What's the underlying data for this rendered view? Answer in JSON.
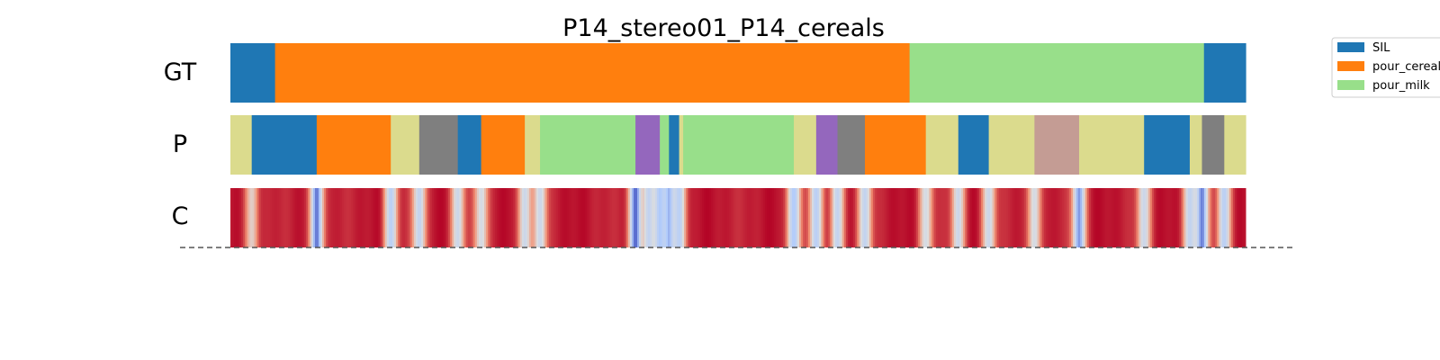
{
  "chart_data": {
    "type": "segmentation",
    "title": "P14_stereo01_P14_cereals",
    "rows": [
      {
        "label": "GT",
        "kind": "segments",
        "segments": [
          {
            "start": 0.0,
            "end": 0.044,
            "class": "SIL"
          },
          {
            "start": 0.044,
            "end": 0.669,
            "class": "pour_cereals"
          },
          {
            "start": 0.669,
            "end": 0.959,
            "class": "pour_milk"
          },
          {
            "start": 0.959,
            "end": 1.0,
            "class": "SIL"
          }
        ]
      },
      {
        "label": "P",
        "kind": "segments",
        "segments": [
          {
            "start": 0.0,
            "end": 0.021,
            "class": "khaki"
          },
          {
            "start": 0.021,
            "end": 0.085,
            "class": "SIL"
          },
          {
            "start": 0.085,
            "end": 0.158,
            "class": "pour_cereals"
          },
          {
            "start": 0.158,
            "end": 0.186,
            "class": "khaki"
          },
          {
            "start": 0.186,
            "end": 0.224,
            "class": "gray"
          },
          {
            "start": 0.224,
            "end": 0.247,
            "class": "SIL"
          },
          {
            "start": 0.247,
            "end": 0.29,
            "class": "pour_cereals"
          },
          {
            "start": 0.29,
            "end": 0.305,
            "class": "khaki"
          },
          {
            "start": 0.305,
            "end": 0.399,
            "class": "pour_milk"
          },
          {
            "start": 0.399,
            "end": 0.423,
            "class": "purple"
          },
          {
            "start": 0.423,
            "end": 0.432,
            "class": "pour_milk"
          },
          {
            "start": 0.432,
            "end": 0.442,
            "class": "SIL"
          },
          {
            "start": 0.442,
            "end": 0.446,
            "class": "khaki"
          },
          {
            "start": 0.446,
            "end": 0.555,
            "class": "pour_milk"
          },
          {
            "start": 0.555,
            "end": 0.577,
            "class": "khaki"
          },
          {
            "start": 0.577,
            "end": 0.598,
            "class": "purple"
          },
          {
            "start": 0.598,
            "end": 0.625,
            "class": "gray"
          },
          {
            "start": 0.625,
            "end": 0.685,
            "class": "pour_cereals"
          },
          {
            "start": 0.685,
            "end": 0.717,
            "class": "khaki"
          },
          {
            "start": 0.717,
            "end": 0.747,
            "class": "SIL"
          },
          {
            "start": 0.747,
            "end": 0.792,
            "class": "khaki"
          },
          {
            "start": 0.792,
            "end": 0.836,
            "class": "rosy"
          },
          {
            "start": 0.836,
            "end": 0.9,
            "class": "khaki"
          },
          {
            "start": 0.9,
            "end": 0.945,
            "class": "SIL"
          },
          {
            "start": 0.945,
            "end": 0.957,
            "class": "khaki"
          },
          {
            "start": 0.957,
            "end": 0.979,
            "class": "gray"
          },
          {
            "start": 0.979,
            "end": 1.0,
            "class": "khaki"
          }
        ]
      },
      {
        "label": "C",
        "kind": "confidence",
        "colormap": [
          "#3b4cc0",
          "#b2ccfb",
          "#dddddd",
          "#f29072",
          "#b40426"
        ],
        "dips": [
          {
            "pos": 0.021,
            "min": 0.55
          },
          {
            "pos": 0.085,
            "min": 0.08
          },
          {
            "pos": 0.158,
            "min": 0.3
          },
          {
            "pos": 0.186,
            "min": 0.35
          },
          {
            "pos": 0.224,
            "min": 0.4
          },
          {
            "pos": 0.247,
            "min": 0.45
          },
          {
            "pos": 0.29,
            "min": 0.4
          },
          {
            "pos": 0.305,
            "min": 0.4
          },
          {
            "pos": 0.399,
            "min": 0.05
          },
          {
            "pos": 0.412,
            "min": 0.35
          },
          {
            "pos": 0.423,
            "min": 0.25
          },
          {
            "pos": 0.432,
            "min": 0.2
          },
          {
            "pos": 0.442,
            "min": 0.3
          },
          {
            "pos": 0.555,
            "min": 0.25
          },
          {
            "pos": 0.577,
            "min": 0.3
          },
          {
            "pos": 0.598,
            "min": 0.35
          },
          {
            "pos": 0.625,
            "min": 0.35
          },
          {
            "pos": 0.685,
            "min": 0.45
          },
          {
            "pos": 0.717,
            "min": 0.4
          },
          {
            "pos": 0.747,
            "min": 0.4
          },
          {
            "pos": 0.792,
            "min": 0.45
          },
          {
            "pos": 0.836,
            "min": 0.15
          },
          {
            "pos": 0.9,
            "min": 0.4
          },
          {
            "pos": 0.945,
            "min": 0.35
          },
          {
            "pos": 0.957,
            "min": 0.1
          },
          {
            "pos": 0.979,
            "min": 0.3
          }
        ]
      }
    ],
    "legend": {
      "placement": "top-right",
      "entries": [
        {
          "label": "SIL",
          "color": "#1f77b4"
        },
        {
          "label": "pour_cereals",
          "color": "#ff7f0e"
        },
        {
          "label": "pour_milk",
          "color": "#98df8a"
        }
      ]
    },
    "class_colors": {
      "SIL": "#1f77b4",
      "pour_cereals": "#ff7f0e",
      "pour_milk": "#98df8a",
      "khaki": "#dbdb8d",
      "gray": "#7f7f7f",
      "purple": "#9467bd",
      "rosy": "#c49c94"
    }
  }
}
